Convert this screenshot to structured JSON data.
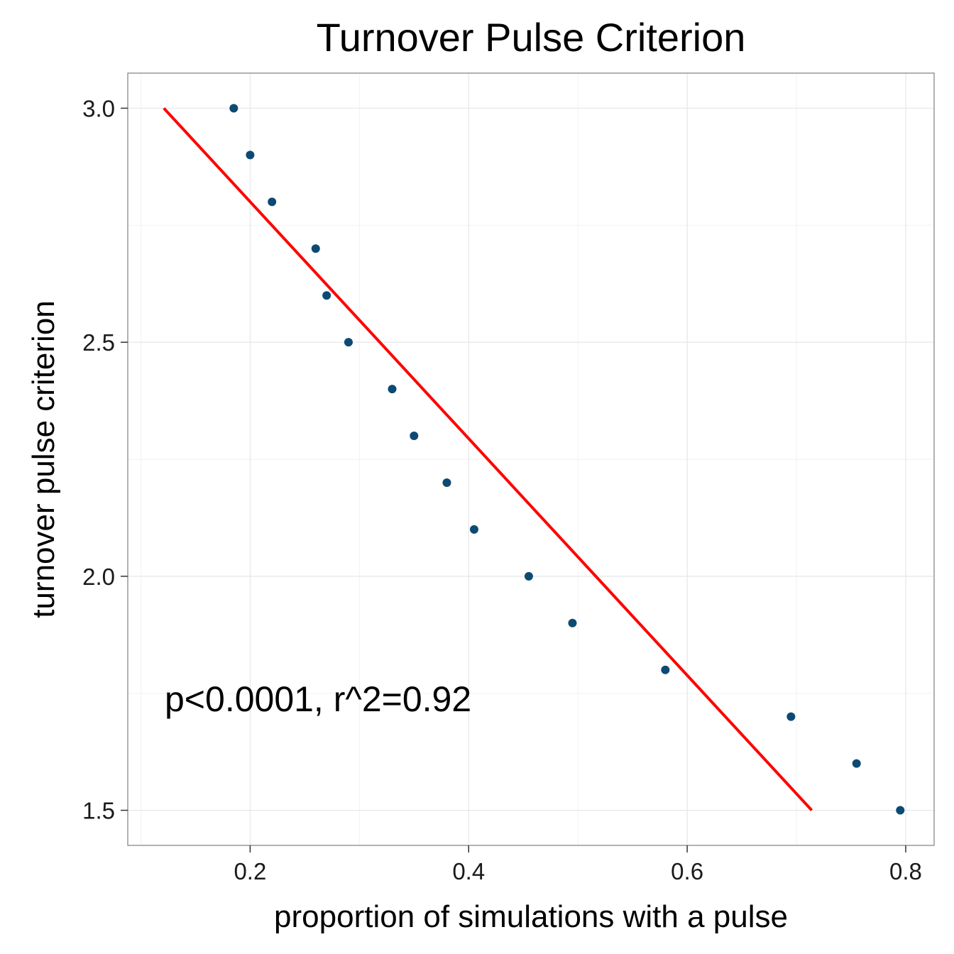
{
  "chart_data": {
    "type": "scatter",
    "title": "Turnover Pulse Criterion",
    "xlabel": "proportion of simulations with a pulse",
    "ylabel": "turnover pulse criterion",
    "xlim": [
      0.088,
      0.826
    ],
    "ylim": [
      1.425,
      3.075
    ],
    "x_ticks": [
      0.2,
      0.4,
      0.6,
      0.8
    ],
    "x_tick_labels": [
      "0.2",
      "0.4",
      "0.6",
      "0.8"
    ],
    "y_ticks": [
      1.5,
      2.0,
      2.5,
      3.0
    ],
    "y_tick_labels": [
      "1.5",
      "2.0",
      "2.5",
      "3.0"
    ],
    "grid": true,
    "point_color": "#0d4a73",
    "line_color": "#ff0000",
    "points": [
      {
        "x": 0.185,
        "y": 3.0
      },
      {
        "x": 0.2,
        "y": 2.9
      },
      {
        "x": 0.22,
        "y": 2.8
      },
      {
        "x": 0.26,
        "y": 2.7
      },
      {
        "x": 0.27,
        "y": 2.6
      },
      {
        "x": 0.29,
        "y": 2.5
      },
      {
        "x": 0.33,
        "y": 2.4
      },
      {
        "x": 0.35,
        "y": 2.3
      },
      {
        "x": 0.38,
        "y": 2.2
      },
      {
        "x": 0.405,
        "y": 2.1
      },
      {
        "x": 0.455,
        "y": 2.0
      },
      {
        "x": 0.495,
        "y": 1.9
      },
      {
        "x": 0.58,
        "y": 1.8
      },
      {
        "x": 0.695,
        "y": 1.7
      },
      {
        "x": 0.755,
        "y": 1.6
      },
      {
        "x": 0.795,
        "y": 1.5
      }
    ],
    "fit_line": {
      "x": [
        0.121,
        0.714
      ],
      "y": [
        3.0,
        1.5
      ]
    },
    "annotation": "p<0.0001, r^2=0.92"
  }
}
